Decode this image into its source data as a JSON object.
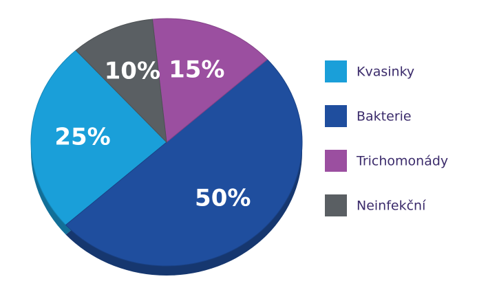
{
  "chart_data": {
    "type": "pie",
    "categories": [
      "Kvasinky",
      "Bakterie",
      "Trichomonády",
      "Neinfekční"
    ],
    "values": [
      25,
      50,
      15,
      10
    ],
    "value_labels": [
      "25%",
      "50%",
      "15%",
      "10%"
    ],
    "colors": [
      "#1a9fd9",
      "#1f4e9e",
      "#9b4fa0",
      "#5a5f63"
    ],
    "legend": "right"
  }
}
